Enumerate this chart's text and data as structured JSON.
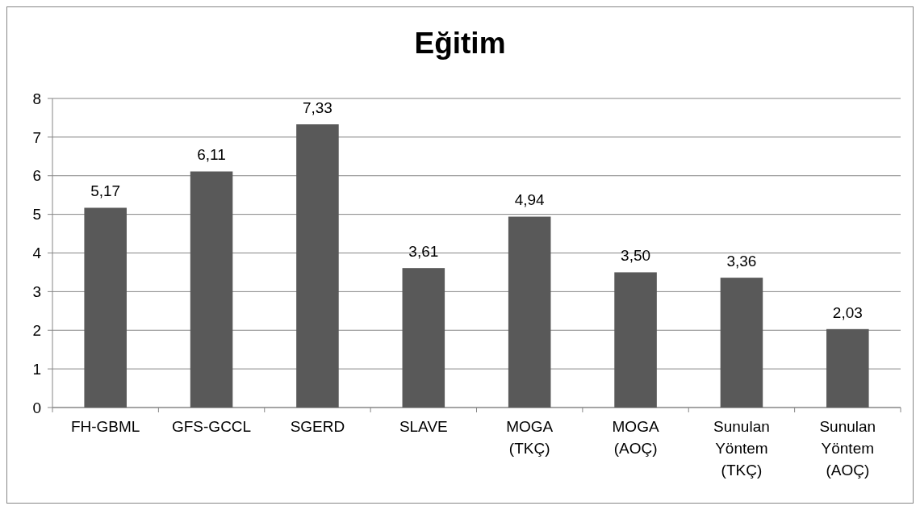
{
  "chart_data": {
    "type": "bar",
    "title": "Eğitim",
    "categories": [
      "FH-GBML",
      "GFS-GCCL",
      "SGERD",
      "SLAVE",
      "MOGA (TKÇ)",
      "MOGA (AOÇ)",
      "Sunulan Yöntem (TKÇ)",
      "Sunulan Yöntem (AOÇ)"
    ],
    "values": [
      5.17,
      6.11,
      7.33,
      3.61,
      4.94,
      3.5,
      3.36,
      2.03
    ],
    "value_labels": [
      "5,17",
      "6,11",
      "7,33",
      "3,61",
      "4,94",
      "3,50",
      "3,36",
      "2,03"
    ],
    "color": "#595959",
    "ylim": [
      0,
      8
    ],
    "yticks": [
      0,
      1,
      2,
      3,
      4,
      5,
      6,
      7,
      8
    ],
    "grid": "y"
  }
}
